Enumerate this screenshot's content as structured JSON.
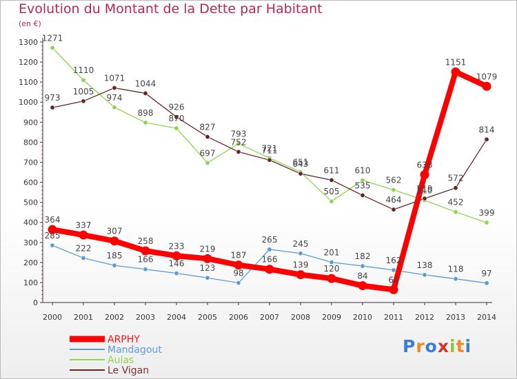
{
  "title": "Evolution du Montant de la Dette par Habitant",
  "subtitle": "(en €)",
  "logo_text": "Proxiti",
  "chart_data": {
    "type": "line",
    "title": "Evolution du Montant de la Dette par Habitant",
    "ylabel": "(en €)",
    "xlabel": "",
    "ylim": [
      0,
      1300
    ],
    "yticks": [
      0,
      100,
      200,
      300,
      400,
      500,
      600,
      700,
      800,
      900,
      1000,
      1100,
      1200,
      1300
    ],
    "categories": [
      "2000",
      "2001",
      "2002",
      "2003",
      "2004",
      "2005",
      "2006",
      "2007",
      "2008",
      "2009",
      "2010",
      "2011",
      "2012",
      "2013",
      "2014"
    ],
    "grid": false,
    "legend_position": "bottom-left",
    "series": [
      {
        "name": "ARPHY",
        "color": "#ff0000",
        "values": [
          364,
          337,
          307,
          258,
          233,
          219,
          187,
          166,
          139,
          120,
          84,
          64,
          638,
          1151,
          1079
        ]
      },
      {
        "name": "Mandagout",
        "color": "#5b9bd5",
        "values": [
          285,
          222,
          185,
          166,
          146,
          123,
          98,
          265,
          245,
          201,
          182,
          162,
          138,
          118,
          97
        ]
      },
      {
        "name": "Aulas",
        "color": "#8ed44c",
        "values": [
          1271,
          1110,
          974,
          898,
          870,
          697,
          793,
          721,
          651,
          505,
          610,
          562,
          510,
          452,
          399
        ]
      },
      {
        "name": "Le Vigan",
        "color": "#6b2424",
        "values": [
          973,
          1005,
          1071,
          1044,
          926,
          827,
          752,
          711,
          643,
          611,
          535,
          464,
          519,
          572,
          814
        ]
      }
    ]
  }
}
